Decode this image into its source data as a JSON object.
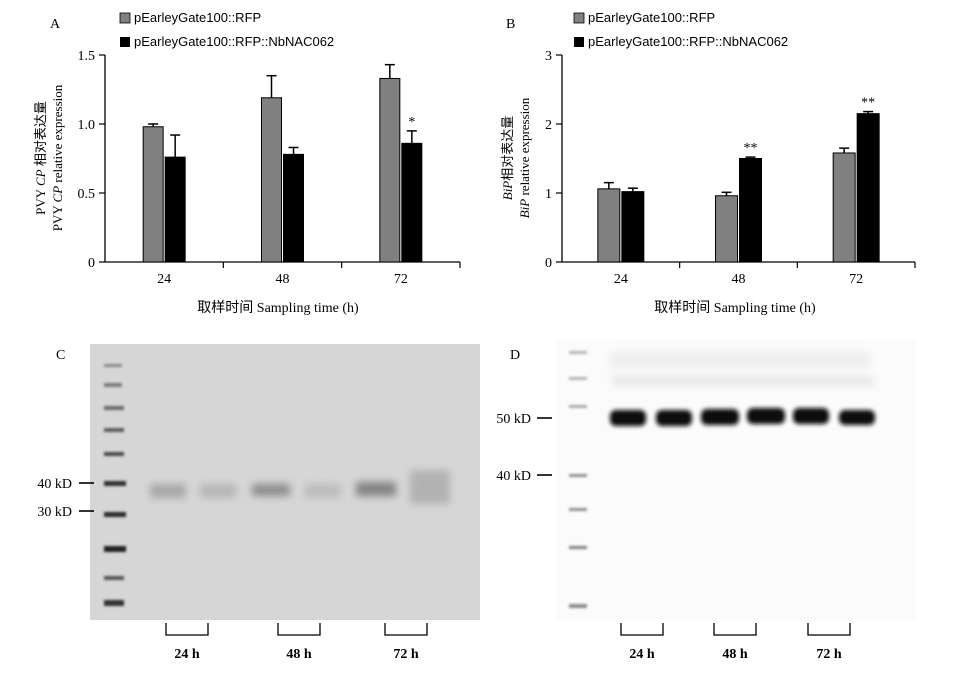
{
  "panels": {
    "A": "A",
    "B": "B",
    "C": "C",
    "D": "D"
  },
  "chart_data": [
    {
      "type": "bar",
      "panel": "A",
      "categories": [
        "24",
        "48",
        "72"
      ],
      "series": [
        {
          "name": "pEarleyGate100::RFP",
          "values": [
            0.98,
            1.19,
            1.33
          ],
          "errors": [
            0.02,
            0.16,
            0.1
          ],
          "color": "#808080"
        },
        {
          "name": "pEarleyGate100::RFP::NbNAC062",
          "values": [
            0.76,
            0.78,
            0.86
          ],
          "errors": [
            0.16,
            0.05,
            0.09
          ],
          "color": "#000000"
        }
      ],
      "significance": [
        {
          "category": "72",
          "series": 1,
          "text": "*"
        }
      ],
      "ylim": [
        0,
        1.5
      ],
      "yticks": [
        "0",
        "0.5",
        "1.0",
        "1.5"
      ],
      "ylabel_cn_parts": {
        "a": "PVY ",
        "b": "CP",
        "c": " 相对表达量"
      },
      "ylabel_en_parts": {
        "a": "PVY ",
        "b": "CP",
        "c": " relative expression"
      },
      "xlabel": "取样时间 Sampling time (h)"
    },
    {
      "type": "bar",
      "panel": "B",
      "categories": [
        "24",
        "48",
        "72"
      ],
      "series": [
        {
          "name": "pEarleyGate100::RFP",
          "values": [
            1.06,
            0.96,
            1.58
          ],
          "errors": [
            0.09,
            0.05,
            0.07
          ],
          "color": "#808080"
        },
        {
          "name": "pEarleyGate100::RFP::NbNAC062",
          "values": [
            1.02,
            1.5,
            2.15
          ],
          "errors": [
            0.05,
            0.02,
            0.03
          ],
          "color": "#000000"
        }
      ],
      "significance": [
        {
          "category": "48",
          "series": 1,
          "text": "**"
        },
        {
          "category": "72",
          "series": 1,
          "text": "**"
        }
      ],
      "ylim": [
        0,
        3
      ],
      "yticks": [
        "0",
        "1",
        "2",
        "3"
      ],
      "ylabel_cn_parts": {
        "a": "BiP",
        "b": "相对表达量"
      },
      "ylabel_en_parts": {
        "a": "BiP",
        "b": " relative expression"
      },
      "xlabel": "取样时间 Sampling time (h)"
    }
  ],
  "blots": {
    "C": {
      "markers": [
        "40 kD",
        "30 kD"
      ],
      "time_labels": [
        "24 h",
        "48 h",
        "72 h"
      ]
    },
    "D": {
      "markers": [
        "50 kD",
        "40 kD"
      ],
      "time_labels": [
        "24 h",
        "48 h",
        "72 h"
      ]
    }
  }
}
